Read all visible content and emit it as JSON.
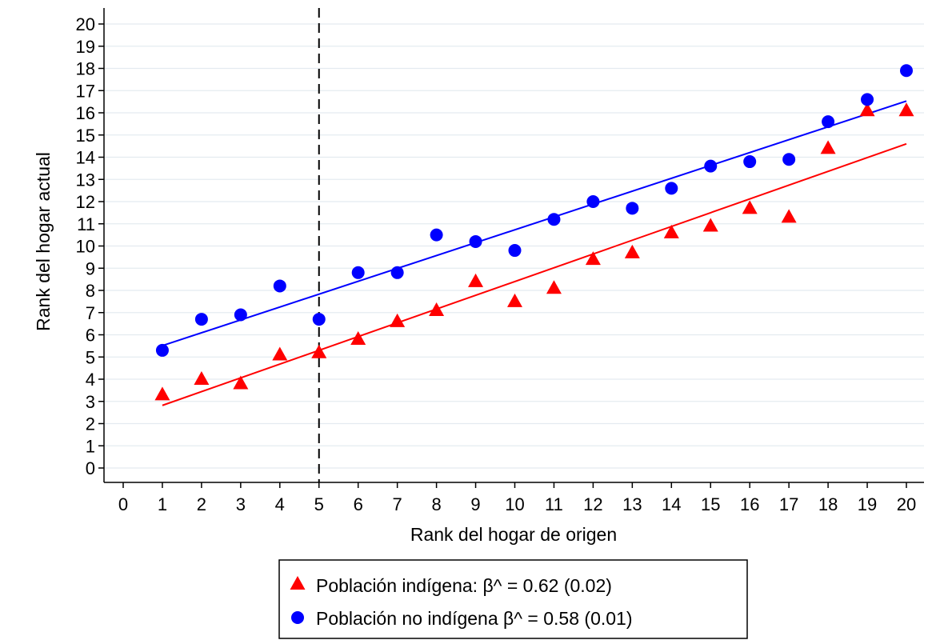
{
  "chart_data": {
    "type": "scatter",
    "xlabel": "Rank del hogar de origen",
    "ylabel": "Rank del hogar actual",
    "xlim": [
      0,
      20
    ],
    "ylim": [
      0,
      20
    ],
    "x_ticks": [
      0,
      1,
      2,
      3,
      4,
      5,
      6,
      7,
      8,
      9,
      10,
      11,
      12,
      13,
      14,
      15,
      16,
      17,
      18,
      19,
      20
    ],
    "y_ticks": [
      0,
      1,
      2,
      3,
      4,
      5,
      6,
      7,
      8,
      9,
      10,
      11,
      12,
      13,
      14,
      15,
      16,
      17,
      18,
      19,
      20
    ],
    "grid": "horizontal",
    "reference_line": {
      "x": 5,
      "style": "dashed"
    },
    "legend_position": "bottom",
    "series": [
      {
        "name": "Población indígena: β^ = 0.62 (0.02)",
        "marker": "triangle",
        "color": "#ff0000",
        "x": [
          1,
          2,
          3,
          4,
          5,
          6,
          7,
          8,
          9,
          10,
          11,
          12,
          13,
          14,
          15,
          16,
          17,
          18,
          19,
          20
        ],
        "y": [
          3.3,
          4.0,
          3.8,
          5.1,
          5.2,
          5.8,
          6.6,
          7.1,
          8.4,
          7.5,
          8.1,
          9.4,
          9.7,
          10.6,
          10.9,
          11.7,
          11.3,
          14.4,
          16.1,
          16.1
        ],
        "fit": {
          "intercept": 2.2,
          "slope": 0.62,
          "x_range": [
            1,
            20
          ]
        }
      },
      {
        "name": "Población no indígena β^ = 0.58 (0.01)",
        "marker": "circle",
        "color": "#0000ff",
        "x": [
          1,
          2,
          3,
          4,
          5,
          6,
          7,
          8,
          9,
          10,
          11,
          12,
          13,
          14,
          15,
          16,
          17,
          18,
          19,
          20
        ],
        "y": [
          5.3,
          6.7,
          6.9,
          8.2,
          6.7,
          8.8,
          8.8,
          10.5,
          10.2,
          9.8,
          11.2,
          12.0,
          11.7,
          12.6,
          13.6,
          13.8,
          13.9,
          15.6,
          16.6,
          17.9
        ],
        "fit": {
          "intercept": 4.93,
          "slope": 0.58,
          "x_range": [
            1,
            20
          ]
        }
      }
    ]
  }
}
